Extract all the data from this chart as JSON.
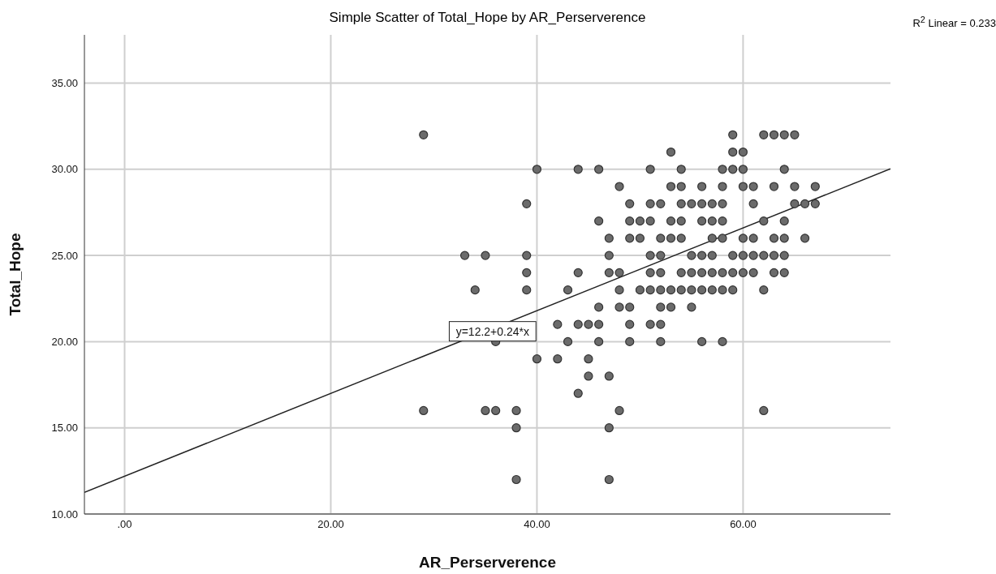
{
  "chart_data": {
    "type": "scatter",
    "title": "Simple Scatter of Total_Hope by AR_Perserverence",
    "xlabel": "AR_Perserverence",
    "ylabel": "Total_Hope",
    "xlim": [
      -3.9,
      74.3
    ],
    "ylim": [
      10,
      37.8
    ],
    "xticks": [
      {
        "value": 0,
        "label": ".00"
      },
      {
        "value": 20,
        "label": "20.00"
      },
      {
        "value": 40,
        "label": "40.00"
      },
      {
        "value": 60,
        "label": "60.00"
      }
    ],
    "yticks": [
      {
        "value": 10,
        "label": "10.00"
      },
      {
        "value": 15,
        "label": "15.00"
      },
      {
        "value": 20,
        "label": "20.00"
      },
      {
        "value": 25,
        "label": "25.00"
      },
      {
        "value": 30,
        "label": "30.00"
      },
      {
        "value": 35,
        "label": "35.00"
      }
    ],
    "grid": true,
    "annotations": [
      {
        "text": "y=12.2+0.24*x",
        "x": 35.7,
        "y": 20.6
      },
      "R$^{2}$ Linear = 0.233"
    ],
    "series": [
      {
        "marker": "circle",
        "color": "#6b6b6b",
        "x": [
          29,
          59,
          62,
          63,
          64,
          65,
          53,
          59,
          60,
          40,
          44,
          46,
          51,
          54,
          58,
          59,
          60,
          64,
          48,
          53,
          54,
          56,
          58,
          60,
          61,
          63,
          65,
          67,
          39,
          49,
          51,
          52,
          54,
          55,
          56,
          57,
          58,
          61,
          65,
          66,
          67,
          46,
          49,
          50,
          51,
          53,
          54,
          56,
          57,
          58,
          62,
          64,
          47,
          49,
          50,
          52,
          53,
          54,
          57,
          58,
          60,
          61,
          63,
          64,
          66,
          33,
          35,
          39,
          47,
          51,
          52,
          55,
          56,
          57,
          59,
          60,
          61,
          62,
          63,
          64,
          39,
          44,
          47,
          48,
          51,
          52,
          54,
          55,
          56,
          57,
          58,
          59,
          60,
          61,
          63,
          64,
          34,
          39,
          43,
          48,
          50,
          51,
          52,
          53,
          54,
          55,
          56,
          57,
          58,
          59,
          62,
          46,
          48,
          49,
          52,
          53,
          55,
          42,
          44,
          45,
          46,
          49,
          51,
          52,
          36,
          43,
          46,
          49,
          52,
          56,
          58,
          40,
          42,
          45,
          45,
          47,
          44,
          29,
          35,
          36,
          38,
          48,
          62,
          38,
          47,
          38,
          47
        ],
        "values": [
          32,
          32,
          32,
          32,
          32,
          32,
          31,
          31,
          31,
          30,
          30,
          30,
          30,
          30,
          30,
          30,
          30,
          30,
          29,
          29,
          29,
          29,
          29,
          29,
          29,
          29,
          29,
          29,
          28,
          28,
          28,
          28,
          28,
          28,
          28,
          28,
          28,
          28,
          28,
          28,
          28,
          27,
          27,
          27,
          27,
          27,
          27,
          27,
          27,
          27,
          27,
          27,
          26,
          26,
          26,
          26,
          26,
          26,
          26,
          26,
          26,
          26,
          26,
          26,
          26,
          25,
          25,
          25,
          25,
          25,
          25,
          25,
          25,
          25,
          25,
          25,
          25,
          25,
          25,
          25,
          24,
          24,
          24,
          24,
          24,
          24,
          24,
          24,
          24,
          24,
          24,
          24,
          24,
          24,
          24,
          24,
          23,
          23,
          23,
          23,
          23,
          23,
          23,
          23,
          23,
          23,
          23,
          23,
          23,
          23,
          23,
          22,
          22,
          22,
          22,
          22,
          22,
          21,
          21,
          21,
          21,
          21,
          21,
          21,
          20,
          20,
          20,
          20,
          20,
          20,
          20,
          19,
          19,
          19,
          18,
          18,
          17,
          16,
          16,
          16,
          16,
          16,
          16,
          15,
          15,
          12,
          12
        ]
      },
      {
        "type": "line",
        "color": "#222222",
        "x": [
          -3.9,
          74.3
        ],
        "values": [
          11.26,
          30.03
        ]
      }
    ]
  }
}
